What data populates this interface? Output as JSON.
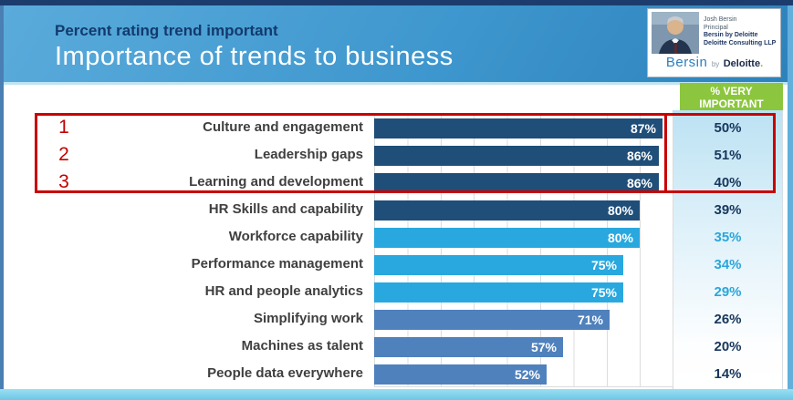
{
  "header": {
    "subtitle": "Percent rating trend important",
    "title": "Importance of trends to business"
  },
  "badge": {
    "person_lines": [
      "Josh Bersin",
      "Principal",
      "Bersin by Deloitte",
      "Deloitte Consulting LLP"
    ],
    "brand": {
      "name1": "Bersin",
      "by": "by",
      "name2": "Deloitte",
      "dot": "."
    }
  },
  "very_important_header": {
    "line1": "% VERY",
    "line2": "IMPORTANT"
  },
  "chart_data": {
    "type": "bar",
    "orientation": "horizontal",
    "title": "Importance of trends to business",
    "subtitle": "Percent rating trend important",
    "categories": [
      "Culture and engagement",
      "Leadership gaps",
      "Learning and development",
      "HR Skills and capability",
      "Workforce capability",
      "Performance management",
      "HR and people analytics",
      "Simplifying work",
      "Machines as talent",
      "People data everywhere"
    ],
    "series": [
      {
        "name": "% rating trend important",
        "values": [
          87,
          86,
          86,
          80,
          80,
          75,
          75,
          71,
          57,
          52
        ]
      },
      {
        "name": "% very important",
        "values": [
          50,
          51,
          40,
          39,
          35,
          34,
          29,
          26,
          20,
          14
        ]
      }
    ],
    "xlim": [
      0,
      90
    ],
    "gridline_interval": 10,
    "grid": true,
    "legend_position": "none",
    "bar_color_groups": [
      "navy",
      "navy",
      "navy",
      "navy",
      "cyan",
      "cyan",
      "cyan",
      "steel",
      "steel",
      "steel"
    ],
    "very_value_colors": [
      "navy",
      "navy",
      "navy",
      "navy",
      "cyan",
      "cyan",
      "cyan",
      "navy",
      "navy",
      "navy"
    ]
  },
  "annotation": {
    "marker_labels": [
      "1",
      "2",
      "3"
    ],
    "highlighted_rows": [
      1,
      2,
      3
    ],
    "color": "#C00000"
  },
  "colors": {
    "bar_navy": "#1F4E79",
    "bar_cyan": "#29A8DF",
    "bar_steel": "#4F81BD",
    "value_navy": "#17375D",
    "value_cyan": "#2BA6DB",
    "green_header_bg": "#8CC63E",
    "banner_blue": "#3E97CE",
    "annotation_red": "#C00000"
  }
}
